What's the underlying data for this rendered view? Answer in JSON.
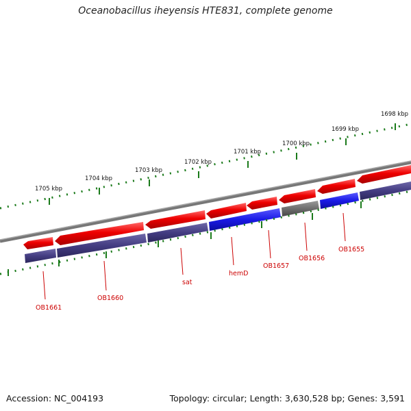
{
  "title": "Oceanobacillus iheyensis HTE831, complete genome",
  "footer": {
    "accession": "Accession: NC_004193",
    "summary": "Topology: circular; Length: 3,630,528 bp; Genes: 3,591"
  },
  "ruler_labels": [
    {
      "text": "1705 kbp",
      "kbp": 1705
    },
    {
      "text": "1704 kbp",
      "kbp": 1704
    },
    {
      "text": "1703 kbp",
      "kbp": 1703
    },
    {
      "text": "1702 kbp",
      "kbp": 1702
    },
    {
      "text": "1701 kbp",
      "kbp": 1701
    },
    {
      "text": "1700 kbp",
      "kbp": 1700
    },
    {
      "text": "1699 kbp",
      "kbp": 1699
    },
    {
      "text": "1698 kbp",
      "kbp": 1698
    }
  ],
  "gene_labels": [
    {
      "text": "OB1661",
      "gene": 0
    },
    {
      "text": "OB1660",
      "gene": 1
    },
    {
      "text": "sat",
      "gene": 2
    },
    {
      "text": "hemD",
      "gene": 3
    },
    {
      "text": "OB1657",
      "gene": 4
    },
    {
      "text": "OB1656",
      "gene": 5
    },
    {
      "text": "OB1655",
      "gene": 6
    }
  ],
  "colors": {
    "cds": "#ee0000",
    "protein": "#443d82",
    "highlight": "#1a1ae6",
    "other": "#6e6e6e",
    "backbone": "#7a7a7a",
    "tick": "#1a7a1a",
    "label": "#cc0000"
  }
}
